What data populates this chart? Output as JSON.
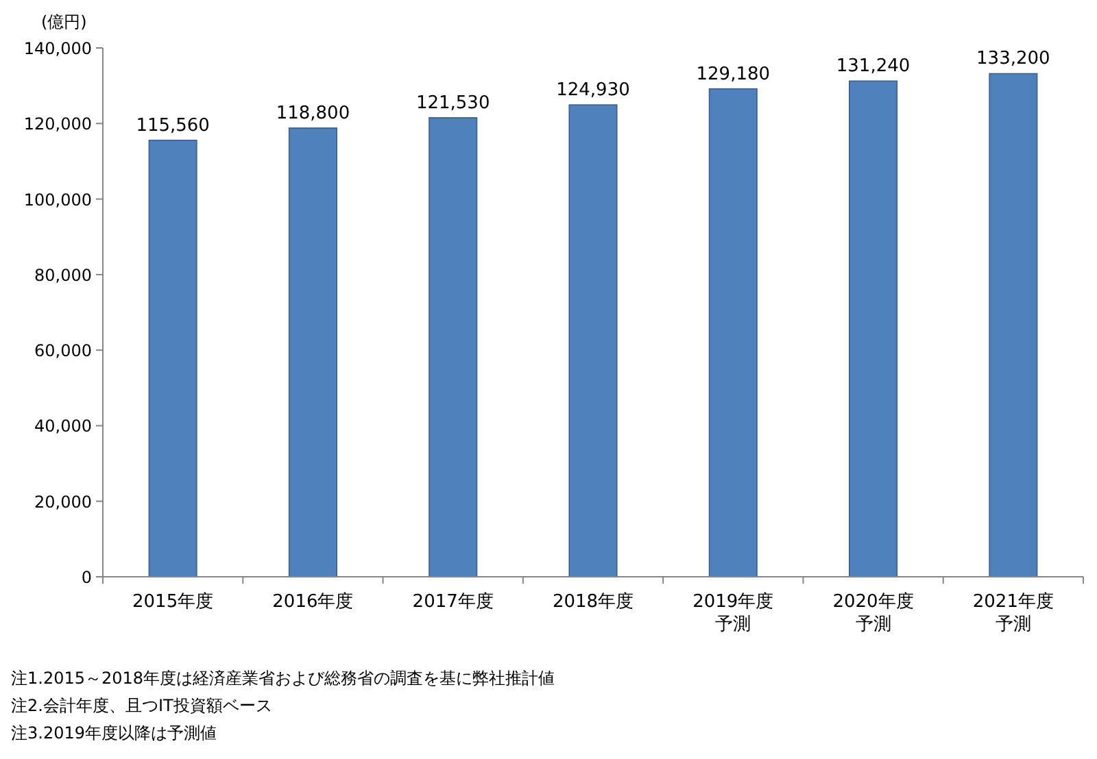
{
  "chart_data": {
    "type": "bar",
    "ylabel": "(億円)",
    "categories": [
      "2015年度",
      "2016年度",
      "2017年度",
      "2018年度",
      "2019年度予測",
      "2020年度予測",
      "2021年度予測"
    ],
    "values": [
      115560,
      118800,
      121530,
      124930,
      129180,
      131240,
      133200
    ],
    "value_labels": [
      "115,560",
      "118,800",
      "121,530",
      "124,930",
      "129,180",
      "131,240",
      "133,200"
    ],
    "color": "#4f81bd",
    "ylim": [
      0,
      140000
    ],
    "yticks": [
      {
        "value": 0,
        "label": "0"
      },
      {
        "value": 20000,
        "label": "20,000"
      },
      {
        "value": 40000,
        "label": "40,000"
      },
      {
        "value": 60000,
        "label": "60,000"
      },
      {
        "value": 80000,
        "label": "80,000"
      },
      {
        "value": 100000,
        "label": "100,000"
      },
      {
        "value": 120000,
        "label": "120,000"
      },
      {
        "value": 140000,
        "label": "140,000"
      }
    ],
    "annotations": [
      "注1.2015～2018年度は経済産業省および総務省の調査を基に弊社推計値",
      "注2.会計年度、且つIT投資額ベース",
      "注3.2019年度以降は予測値"
    ]
  }
}
